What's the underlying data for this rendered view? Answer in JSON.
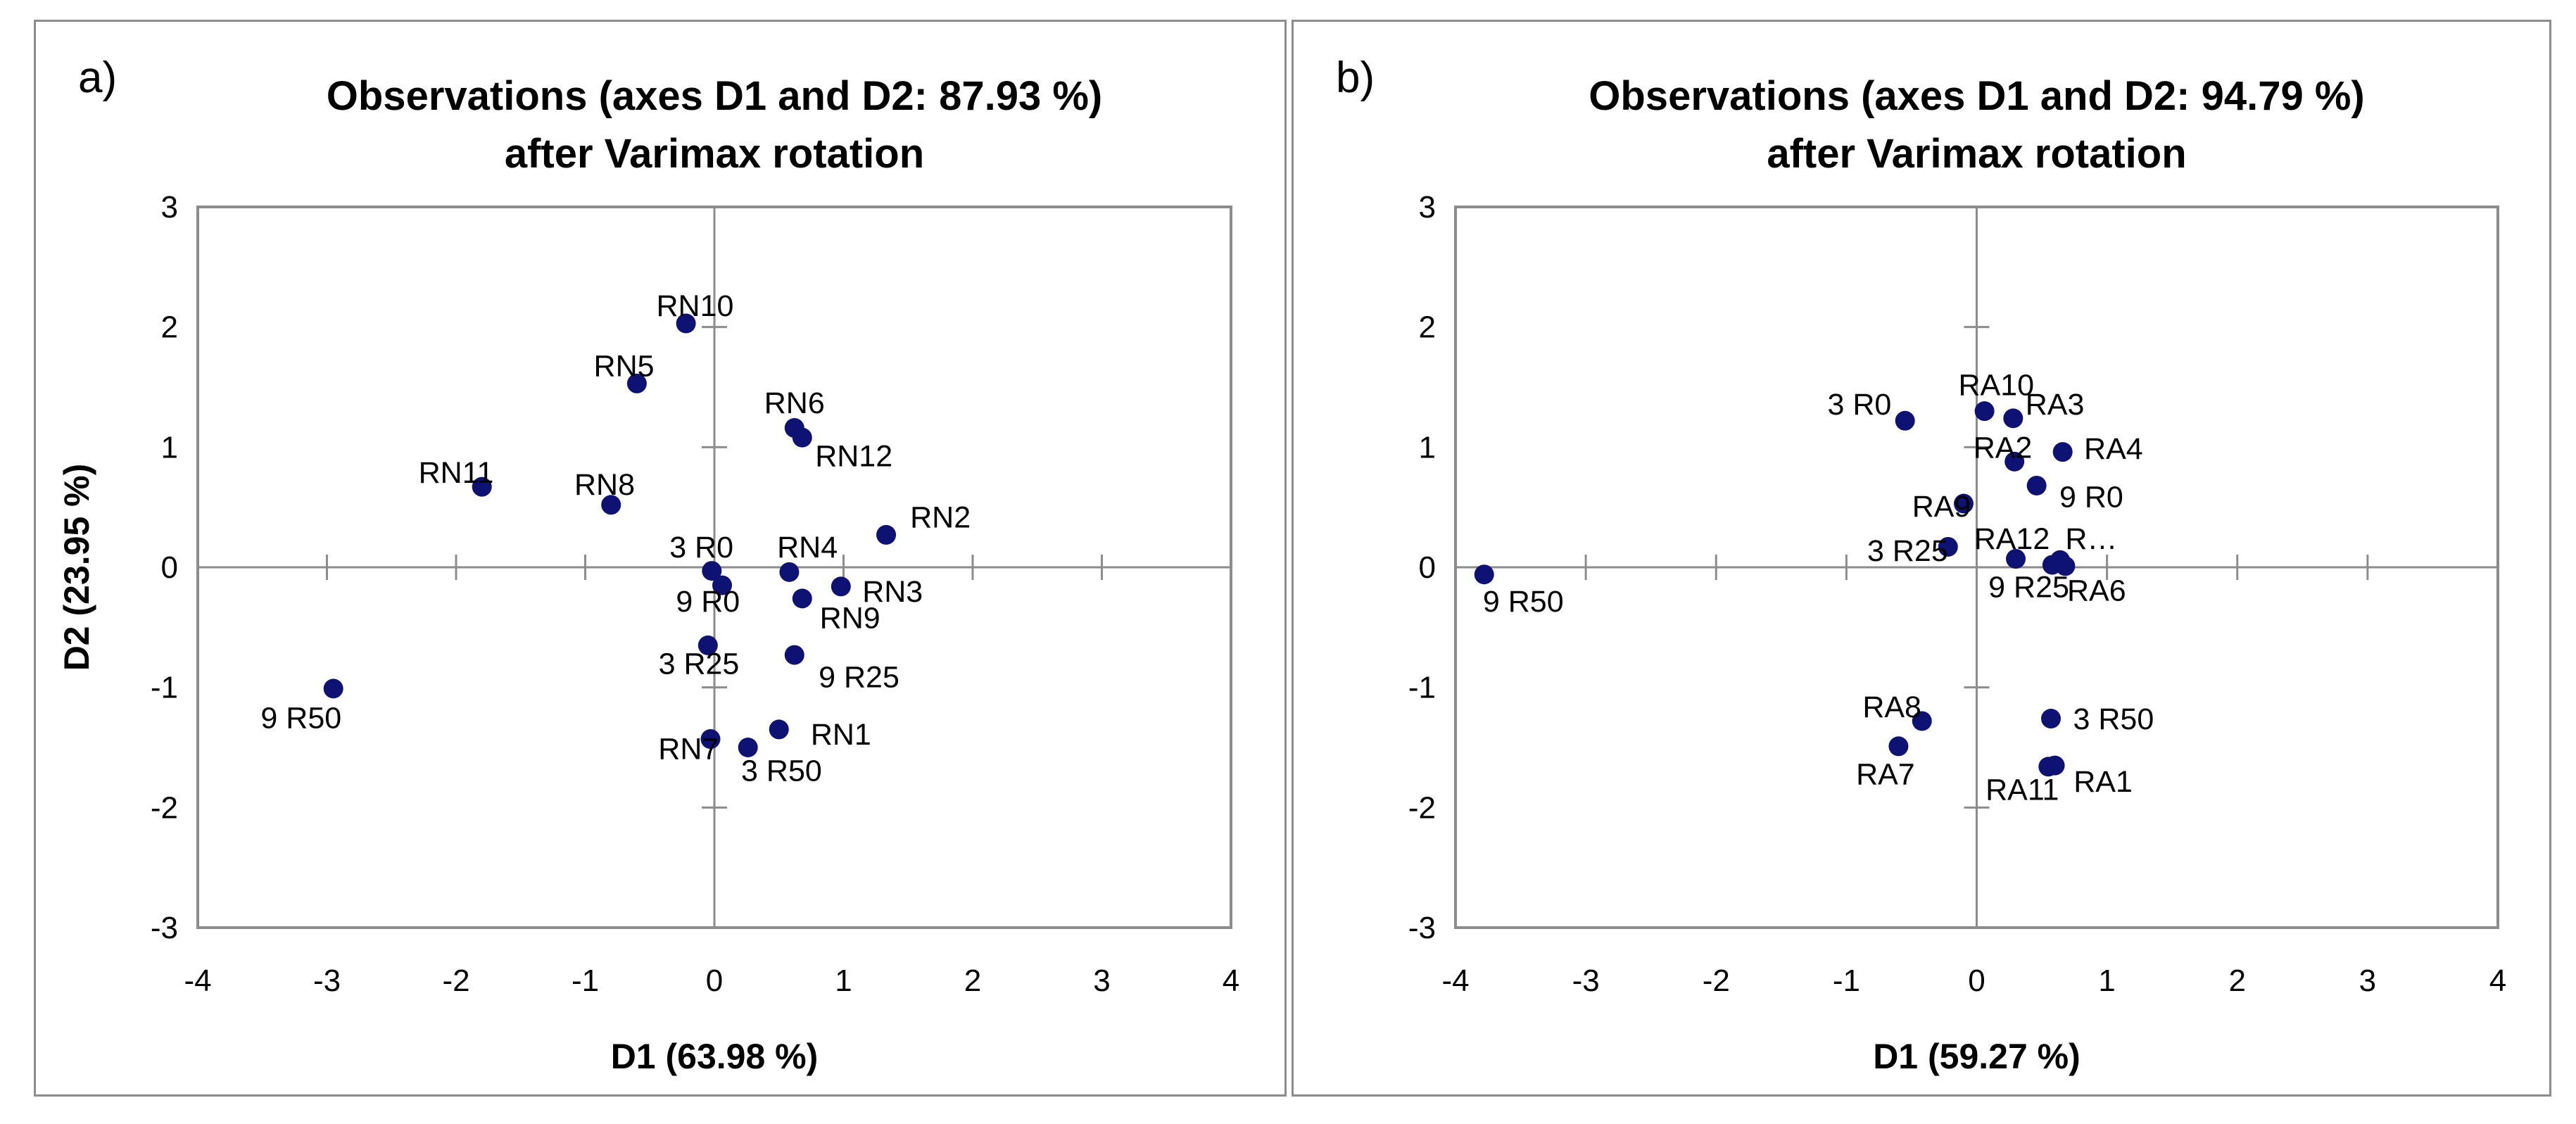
{
  "chart_data": [
    {
      "type": "scatter",
      "panel_label": "a)",
      "title": [
        "Observations (axes D1 and D2: 87.93 %)",
        "after Varimax rotation"
      ],
      "xlabel": "D1 (63.98 %)",
      "ylabel": "D2 (23.95 %)",
      "xlim": [
        -4,
        4
      ],
      "ylim": [
        -3,
        3
      ],
      "xticks": [
        -4,
        -3,
        -2,
        -1,
        0,
        1,
        2,
        3,
        4
      ],
      "yticks": [
        -3,
        -2,
        -1,
        0,
        1,
        2,
        3
      ],
      "grid": false,
      "marker_color": "#0d1273",
      "points": [
        {
          "label": "RN10",
          "x": -0.22,
          "y": 2.03,
          "lx": -0.15,
          "ly": 2.18
        },
        {
          "label": "RN5",
          "x": -0.6,
          "y": 1.53,
          "lx": -0.7,
          "ly": 1.68
        },
        {
          "label": "RN6",
          "x": 0.62,
          "y": 1.16,
          "lx": 0.62,
          "ly": 1.37
        },
        {
          "label": "RN12",
          "x": 0.68,
          "y": 1.08,
          "lx": 1.08,
          "ly": 0.93
        },
        {
          "label": "RN11",
          "x": -1.8,
          "y": 0.67,
          "lx": -2.0,
          "ly": 0.79
        },
        {
          "label": "RN8",
          "x": -0.8,
          "y": 0.52,
          "lx": -0.85,
          "ly": 0.69
        },
        {
          "label": "RN2",
          "x": 1.33,
          "y": 0.27,
          "lx": 1.75,
          "ly": 0.42
        },
        {
          "label": "3 R0",
          "x": -0.02,
          "y": -0.03,
          "lx": -0.1,
          "ly": 0.17
        },
        {
          "label": "RN4",
          "x": 0.58,
          "y": -0.04,
          "lx": 0.72,
          "ly": 0.17
        },
        {
          "label": "9 R0",
          "x": 0.06,
          "y": -0.15,
          "lx": -0.05,
          "ly": -0.28
        },
        {
          "label": "RN3",
          "x": 0.98,
          "y": -0.16,
          "lx": 1.38,
          "ly": -0.2
        },
        {
          "label": "RN9",
          "x": 0.68,
          "y": -0.26,
          "lx": 1.05,
          "ly": -0.42
        },
        {
          "label": "3 R25",
          "x": -0.05,
          "y": -0.65,
          "lx": -0.12,
          "ly": -0.8
        },
        {
          "label": "9 R25",
          "x": 0.62,
          "y": -0.73,
          "lx": 1.12,
          "ly": -0.91
        },
        {
          "label": "9 R50",
          "x": -2.95,
          "y": -1.01,
          "lx": -3.2,
          "ly": -1.25
        },
        {
          "label": "RN1",
          "x": 0.5,
          "y": -1.35,
          "lx": 0.98,
          "ly": -1.39
        },
        {
          "label": "RN7",
          "x": -0.03,
          "y": -1.43,
          "lx": -0.2,
          "ly": -1.51
        },
        {
          "label": "3 R50",
          "x": 0.26,
          "y": -1.5,
          "lx": 0.52,
          "ly": -1.69
        }
      ]
    },
    {
      "type": "scatter",
      "panel_label": "b)",
      "title": [
        "Observations (axes D1 and D2: 94.79 %)",
        "after Varimax rotation"
      ],
      "xlabel": "D1 (59.27 %)",
      "ylabel": "",
      "xlim": [
        -4,
        4
      ],
      "ylim": [
        -3,
        3
      ],
      "xticks": [
        -4,
        -3,
        -2,
        -1,
        0,
        1,
        2,
        3,
        4
      ],
      "yticks": [
        -3,
        -2,
        -1,
        0,
        1,
        2,
        3
      ],
      "grid": false,
      "marker_color": "#0d1273",
      "points": [
        {
          "label": "RA10",
          "x": 0.06,
          "y": 1.3,
          "lx": 0.15,
          "ly": 1.52
        },
        {
          "label": "RA3",
          "x": 0.28,
          "y": 1.24,
          "lx": 0.6,
          "ly": 1.36
        },
        {
          "label": "3 R0",
          "x": -0.55,
          "y": 1.22,
          "lx": -0.9,
          "ly": 1.36
        },
        {
          "label": "RA4",
          "x": 0.66,
          "y": 0.96,
          "lx": 1.05,
          "ly": 0.99
        },
        {
          "label": "RA2",
          "x": 0.29,
          "y": 0.88,
          "lx": 0.2,
          "ly": 1.0
        },
        {
          "label": "9 R0",
          "x": 0.46,
          "y": 0.68,
          "lx": 0.88,
          "ly": 0.59
        },
        {
          "label": "RA9",
          "x": -0.1,
          "y": 0.53,
          "lx": -0.27,
          "ly": 0.51
        },
        {
          "label": "RA12",
          "x": 0.3,
          "y": 0.07,
          "lx": 0.27,
          "ly": 0.24
        },
        {
          "label": "R…",
          "x": 0.64,
          "y": 0.06,
          "lx": 0.88,
          "ly": 0.24
        },
        {
          "label": "3 R25",
          "x": -0.22,
          "y": 0.17,
          "lx": -0.53,
          "ly": 0.14
        },
        {
          "label": "9 R25",
          "x": 0.58,
          "y": 0.02,
          "lx": 0.4,
          "ly": -0.16
        },
        {
          "label": "RA6",
          "x": 0.68,
          "y": 0.01,
          "lx": 0.92,
          "ly": -0.19
        },
        {
          "label": "9 R50",
          "x": -3.78,
          "y": -0.06,
          "lx": -3.48,
          "ly": -0.28
        },
        {
          "label": "RA8",
          "x": -0.42,
          "y": -1.28,
          "lx": -0.65,
          "ly": -1.16
        },
        {
          "label": "3 R50",
          "x": 0.57,
          "y": -1.26,
          "lx": 1.05,
          "ly": -1.26
        },
        {
          "label": "RA7",
          "x": -0.6,
          "y": -1.49,
          "lx": -0.7,
          "ly": -1.72
        },
        {
          "label": "RA1",
          "x": 0.6,
          "y": -1.65,
          "lx": 0.97,
          "ly": -1.78
        },
        {
          "label": "RA11",
          "x": 0.55,
          "y": -1.66,
          "lx": 0.35,
          "ly": -1.85
        }
      ]
    }
  ]
}
